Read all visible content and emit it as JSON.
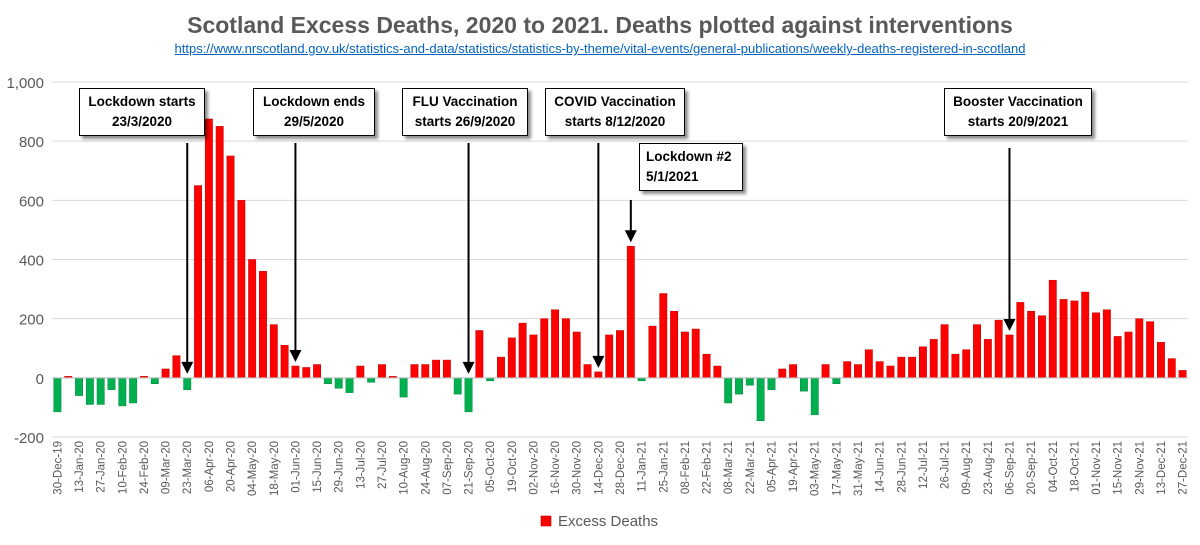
{
  "header": {
    "title": "Scotland Excess Deaths, 2020 to 2021. Deaths plotted against interventions",
    "url": "https://www.nrscotland.gov.uk/statistics-and-data/statistics/statistics-by-theme/vital-events/general-publications/weekly-deaths-registered-in-scotland"
  },
  "colors": {
    "positive": "#ff0000",
    "negative": "#00b050",
    "grid": "#d9d9d9",
    "axis_text": "#595959"
  },
  "annotations": [
    {
      "line1": "Lockdown starts",
      "line2": "23/3/2020"
    },
    {
      "line1": "Lockdown ends",
      "line2": "29/5/2020"
    },
    {
      "line1": "FLU Vaccination",
      "line2": "starts 26/9/2020"
    },
    {
      "line1": "COVID Vaccination",
      "line2": "starts 8/12/2020"
    },
    {
      "line1": "Lockdown #2",
      "line2": "5/1/2021"
    },
    {
      "line1": "Booster Vaccination",
      "line2": "starts 20/9/2021"
    }
  ],
  "chart_data": {
    "type": "bar",
    "ylim": [
      -200,
      1000
    ],
    "yticks": [
      -200,
      0,
      200,
      400,
      600,
      800,
      1000
    ],
    "ytick_labels": [
      "-200",
      "0",
      "200",
      "400",
      "600",
      "800",
      "1,000"
    ],
    "grid": true,
    "legend_position": "bottom",
    "categories": [
      "30-Dec-19",
      "06-Jan-20",
      "13-Jan-20",
      "20-Jan-20",
      "27-Jan-20",
      "03-Feb-20",
      "10-Feb-20",
      "17-Feb-20",
      "24-Feb-20",
      "02-Mar-20",
      "09-Mar-20",
      "16-Mar-20",
      "23-Mar-20",
      "30-Mar-20",
      "06-Apr-20",
      "13-Apr-20",
      "20-Apr-20",
      "27-Apr-20",
      "04-May-20",
      "11-May-20",
      "18-May-20",
      "25-May-20",
      "01-Jun-20",
      "08-Jun-20",
      "15-Jun-20",
      "22-Jun-20",
      "29-Jun-20",
      "06-Jul-20",
      "13-Jul-20",
      "20-Jul-20",
      "27-Jul-20",
      "03-Aug-20",
      "10-Aug-20",
      "17-Aug-20",
      "24-Aug-20",
      "31-Aug-20",
      "07-Sep-20",
      "14-Sep-20",
      "21-Sep-20",
      "28-Sep-20",
      "05-Oct-20",
      "12-Oct-20",
      "19-Oct-20",
      "26-Oct-20",
      "02-Nov-20",
      "09-Nov-20",
      "16-Nov-20",
      "23-Nov-20",
      "30-Nov-20",
      "07-Dec-20",
      "14-Dec-20",
      "21-Dec-20",
      "28-Dec-20",
      "04-Jan-21",
      "11-Jan-21",
      "18-Jan-21",
      "25-Jan-21",
      "01-Feb-21",
      "08-Feb-21",
      "15-Feb-21",
      "22-Feb-21",
      "01-Mar-21",
      "08-Mar-21",
      "15-Mar-21",
      "22-Mar-21",
      "29-Mar-21",
      "05-Apr-21",
      "12-Apr-21",
      "19-Apr-21",
      "26-Apr-21",
      "03-May-21",
      "10-May-21",
      "17-May-21",
      "24-May-21",
      "31-May-21",
      "07-Jun-21",
      "14-Jun-21",
      "21-Jun-21",
      "28-Jun-21",
      "05-Jul-21",
      "12-Jul-21",
      "19-Jul-21",
      "26-Jul-21",
      "02-Aug-21",
      "09-Aug-21",
      "16-Aug-21",
      "23-Aug-21",
      "30-Aug-21",
      "06-Sep-21",
      "13-Sep-21",
      "20-Sep-21",
      "27-Sep-21",
      "04-Oct-21",
      "11-Oct-21",
      "18-Oct-21",
      "25-Oct-21",
      "01-Nov-21",
      "08-Nov-21",
      "15-Nov-21",
      "22-Nov-21",
      "29-Nov-21",
      "06-Dec-21",
      "13-Dec-21",
      "20-Dec-21",
      "27-Dec-21"
    ],
    "tick_labels": [
      "30-Dec-19",
      "13-Jan-20",
      "27-Jan-20",
      "10-Feb-20",
      "24-Feb-20",
      "09-Mar-20",
      "23-Mar-20",
      "06-Apr-20",
      "20-Apr-20",
      "04-May-20",
      "18-May-20",
      "01-Jun-20",
      "15-Jun-20",
      "29-Jun-20",
      "13-Jul-20",
      "27-Jul-20",
      "10-Aug-20",
      "24-Aug-20",
      "07-Sep-20",
      "21-Sep-20",
      "05-Oct-20",
      "19-Oct-20",
      "02-Nov-20",
      "16-Nov-20",
      "30-Nov-20",
      "14-Dec-20",
      "28-Dec-20",
      "11-Jan-21",
      "25-Jan-21",
      "08-Feb-21",
      "22-Feb-21",
      "08-Mar-21",
      "22-Mar-21",
      "05-Apr-21",
      "19-Apr-21",
      "03-May-21",
      "17-May-21",
      "31-May-21",
      "14-Jun-21",
      "28-Jun-21",
      "12-Jul-21",
      "26-Jul-21",
      "09-Aug-21",
      "23-Aug-21",
      "06-Sep-21",
      "20-Sep-21",
      "04-Oct-21",
      "18-Oct-21",
      "01-Nov-21",
      "15-Nov-21",
      "29-Nov-21",
      "13-Dec-21",
      "27-Dec-21"
    ],
    "tick_label_text": [
      "30-Dec-19",
      "13-Jan-20",
      "27-Jan-20",
      "10-Feb-20",
      "24-Feb-20",
      "09-Mar-20",
      "23-Mar-20",
      "06-Apr-20",
      "20-Apr-20",
      "04-May-20",
      "18-May-20",
      "01-Jun-20",
      "15-Jun-20",
      "29-Jun-20",
      "13-Jul-20",
      "27-Jul-20",
      "10-Aug-20",
      "24-Aug-20",
      "07-Sep-20",
      "21-Sep-20",
      "05-Oct-20",
      "19-Oct-20",
      "02-Nov-20",
      "16-Nov-20",
      "30-Nov-20",
      "14-Dec-20",
      "28-Dec-20",
      "11-Jan-21",
      "25-Jan-21",
      "08-Feb-21",
      "22-Feb-21",
      "08-Mar-21",
      "22-Mar-21",
      "05-Apr-21",
      "19-Apr-21",
      "03-May-21",
      "17-May-21",
      "31-May-21",
      "14-Jun-21",
      "28-Jun-21",
      "12-Jul-21",
      "26-Jul-21",
      "09-Aug-21",
      "23-Aug-21",
      "06-Sep-21",
      "20-Sep-21",
      "04-Oct-21",
      "18-Oct-21",
      "01-Nov-21",
      "15-Nov-21",
      "29-Nov-21",
      "13-Dec-21",
      "27-Dec-21"
    ],
    "series": [
      {
        "name": "Excess Deaths",
        "values": [
          -115,
          5,
          -60,
          -90,
          -90,
          -40,
          -95,
          -85,
          5,
          -20,
          30,
          75,
          -40,
          650,
          875,
          850,
          750,
          600,
          400,
          360,
          180,
          110,
          40,
          35,
          45,
          -20,
          -35,
          -50,
          40,
          -15,
          45,
          5,
          -65,
          45,
          45,
          60,
          60,
          -55,
          -115,
          160,
          -10,
          70,
          135,
          185,
          145,
          200,
          230,
          200,
          155,
          45,
          20,
          145,
          160,
          445,
          -10,
          175,
          285,
          225,
          155,
          165,
          80,
          40,
          -85,
          -55,
          -25,
          -145,
          -40,
          30,
          45,
          -45,
          -125,
          45,
          -20,
          55,
          45,
          95,
          55,
          40,
          70,
          70,
          105,
          130,
          180,
          80,
          95,
          180,
          130,
          195,
          145,
          255,
          225,
          210,
          330,
          265,
          260,
          290,
          220,
          230,
          140,
          155,
          200,
          190,
          120,
          65,
          25
        ]
      }
    ]
  }
}
